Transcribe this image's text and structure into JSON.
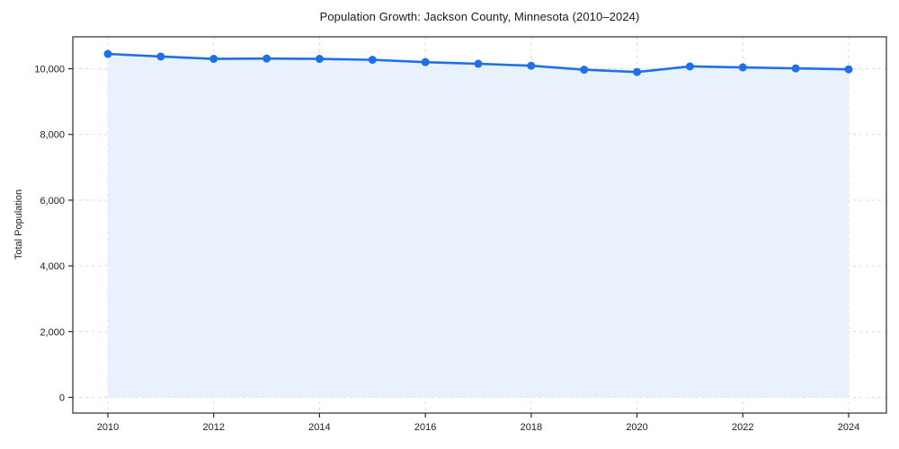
{
  "figure": {
    "title": "Population Growth: Jackson County, Minnesota (2010–2024)",
    "y_axis_label": "Total Population"
  },
  "chart_data": {
    "type": "area",
    "title": "Population Growth: Jackson County, Minnesota (2010–2024)",
    "xlabel": "",
    "ylabel": "Total Population",
    "x": [
      2010,
      2011,
      2012,
      2013,
      2014,
      2015,
      2016,
      2017,
      2018,
      2019,
      2020,
      2021,
      2022,
      2023,
      2024
    ],
    "series": [
      {
        "name": "Total Population",
        "values": [
          10450,
          10370,
          10300,
          10310,
          10300,
          10270,
          10200,
          10150,
          10090,
          9970,
          9900,
          10070,
          10040,
          10010,
          9980
        ]
      }
    ],
    "x_ticks": [
      2010,
      2012,
      2014,
      2016,
      2018,
      2020,
      2022,
      2024
    ],
    "x_tick_labels": [
      "2010",
      "2012",
      "2014",
      "2016",
      "2018",
      "2020",
      "2022",
      "2024"
    ],
    "y_ticks": [
      0,
      2000,
      4000,
      6000,
      8000,
      10000
    ],
    "y_tick_labels": [
      "0",
      "2,000",
      "4,000",
      "6,000",
      "8,000",
      "10,000"
    ],
    "xlim": [
      2009.3,
      2024.7
    ],
    "ylim": [
      -480,
      10970
    ],
    "grid": true,
    "grid_style": "dashed",
    "legend": false,
    "marker": "circle",
    "colors": {
      "line": "#1f70e8",
      "marker": "#1f70e8",
      "fill": "#e9f1fd",
      "grid": "#d9d9d9",
      "axis": "#2b2b2b",
      "text": "#202020",
      "background": "#ffffff"
    }
  }
}
